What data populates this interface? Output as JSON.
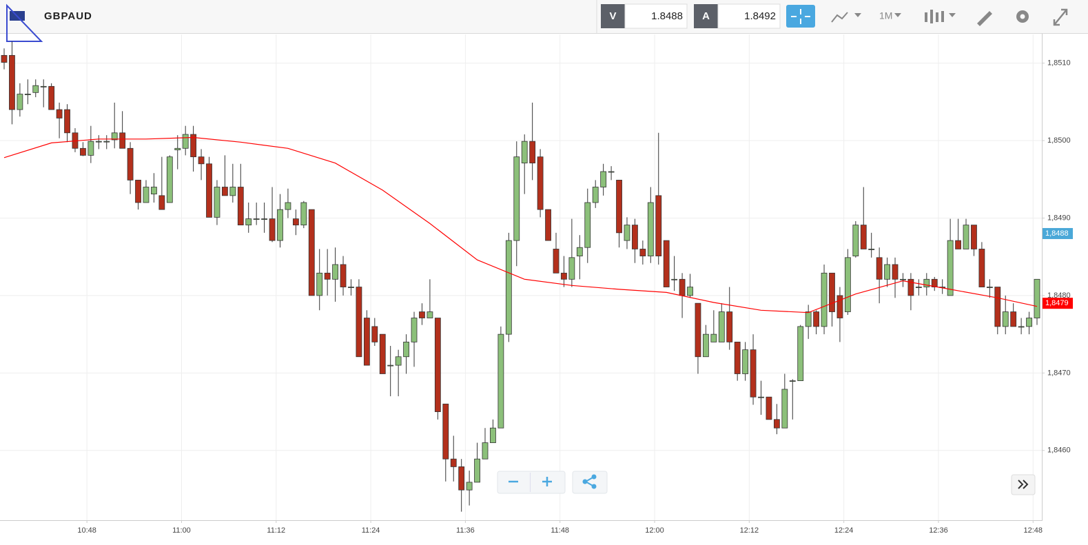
{
  "header": {
    "symbol": "GBPAUD",
    "bid_label": "V",
    "bid": "1.8488",
    "ask_label": "A",
    "ask": "1.8492",
    "timeframe": "1M"
  },
  "chart_data": {
    "type": "candlestick",
    "x": [
      "10:38",
      "10:39",
      "10:40",
      "10:41",
      "10:42",
      "10:43",
      "10:44",
      "10:45",
      "10:46",
      "10:47",
      "10:48",
      "10:49",
      "10:50",
      "10:51",
      "10:52",
      "10:53",
      "10:54",
      "10:55",
      "10:56",
      "10:57",
      "10:58",
      "10:59",
      "11:00",
      "11:01",
      "11:02",
      "11:03",
      "11:04",
      "11:05",
      "11:06",
      "11:07",
      "11:08",
      "11:09",
      "11:10",
      "11:11",
      "11:12",
      "11:13",
      "11:14",
      "11:15",
      "11:16",
      "11:17",
      "11:18",
      "11:19",
      "11:20",
      "11:21",
      "11:22",
      "11:23",
      "11:24",
      "11:25",
      "11:26",
      "11:27",
      "11:28",
      "11:29",
      "11:30",
      "11:31",
      "11:32",
      "11:33",
      "11:34",
      "11:35",
      "11:36",
      "11:37",
      "11:38",
      "11:39",
      "11:40",
      "11:41",
      "11:42",
      "11:43",
      "11:44",
      "11:45",
      "11:46",
      "11:47",
      "11:48",
      "11:49",
      "11:50",
      "11:51",
      "11:52",
      "11:53",
      "11:54",
      "11:55",
      "11:56",
      "11:57",
      "11:58",
      "11:59",
      "12:00",
      "12:01",
      "12:02",
      "12:03",
      "12:04",
      "12:05",
      "12:06",
      "12:07",
      "12:08",
      "12:09",
      "12:10",
      "12:11",
      "12:12",
      "12:13",
      "12:14",
      "12:15",
      "12:16",
      "12:17",
      "12:18",
      "12:19",
      "12:20",
      "12:21",
      "12:22",
      "12:23",
      "12:24",
      "12:25",
      "12:26",
      "12:27",
      "12:28",
      "12:29",
      "12:30",
      "12:31",
      "12:32",
      "12:33",
      "12:34",
      "12:35",
      "12:36",
      "12:37",
      "12:38",
      "12:39",
      "12:40",
      "12:41",
      "12:42",
      "12:43",
      "12:44",
      "12:45",
      "12:46",
      "12:47",
      "12:48",
      "12:49"
    ],
    "open": [
      1.8511,
      1.8511,
      1.8504,
      1.8506,
      1.85062,
      1.8507,
      1.8507,
      1.8504,
      1.8504,
      1.8501,
      1.8499,
      1.84981,
      1.84999,
      1.84999,
      1.85001,
      1.8501,
      1.8499,
      1.84949,
      1.8492,
      1.84931,
      1.84929,
      1.8492,
      1.84988,
      1.8499,
      1.85008,
      1.84979,
      1.8497,
      1.84901,
      1.8494,
      1.84929,
      1.8494,
      1.84891,
      1.84899,
      1.84899,
      1.84899,
      1.84871,
      1.84911,
      1.84899,
      1.84891,
      1.84911,
      1.848,
      1.84829,
      1.84821,
      1.8484,
      1.84811,
      1.84811,
      1.84771,
      1.8476,
      1.8475,
      1.8471,
      1.8471,
      1.84721,
      1.8474,
      1.84779,
      1.84771,
      1.84771,
      1.8466,
      1.84589,
      1.84579,
      1.84549,
      1.84559,
      1.84589,
      1.8461,
      1.84629,
      1.8475,
      1.84871,
      1.84971,
      1.84999,
      1.84979,
      1.84911,
      1.8486,
      1.84829,
      1.84821,
      1.84851,
      1.84862,
      1.8492,
      1.8494,
      1.8496,
      1.84949,
      1.84871,
      1.84891,
      1.8486,
      1.84851,
      1.84929,
      1.84871,
      1.84821,
      1.84821,
      1.848,
      1.8479,
      1.84721,
      1.8474,
      1.8474,
      1.84779,
      1.8474,
      1.84699,
      1.8473,
      1.84669,
      1.84669,
      1.8464,
      1.84629,
      1.8469,
      1.8469,
      1.8476,
      1.84779,
      1.8476,
      1.84829,
      1.848,
      1.84779,
      1.84851,
      1.84891,
      1.8486,
      1.84849,
      1.84821,
      1.8484,
      1.84821,
      1.84821,
      1.84811,
      1.84811,
      1.84821,
      1.84811,
      1.848,
      1.84871,
      1.8486,
      1.84891,
      1.8486,
      1.84811,
      1.84811,
      1.8476,
      1.84779,
      1.8476,
      1.8476,
      1.84771
    ],
    "high": [
      1.85119,
      1.85128,
      1.85074,
      1.85079,
      1.85079,
      1.85079,
      1.85074,
      1.85049,
      1.85047,
      1.85016,
      1.84998,
      1.85019,
      1.85007,
      1.85007,
      1.85049,
      1.85038,
      1.84998,
      1.84949,
      1.84949,
      1.84958,
      1.84979,
      1.84981,
      1.85007,
      1.85019,
      1.85019,
      1.84989,
      1.84979,
      1.84949,
      1.84981,
      1.8497,
      1.8497,
      1.8492,
      1.8492,
      1.8492,
      1.8494,
      1.84931,
      1.84938,
      1.84911,
      1.84922,
      1.84911,
      1.8486,
      1.8486,
      1.84862,
      1.84851,
      1.84821,
      1.84821,
      1.84781,
      1.84771,
      1.8475,
      1.84735,
      1.8473,
      1.8475,
      1.84779,
      1.8479,
      1.84821,
      1.84771,
      1.8466,
      1.84619,
      1.84589,
      1.84574,
      1.8461,
      1.84629,
      1.8464,
      1.8476,
      1.84881,
      1.84999,
      1.85008,
      1.85049,
      1.84989,
      1.84911,
      1.84881,
      1.84851,
      1.84899,
      1.84878,
      1.84938,
      1.84949,
      1.8497,
      1.84967,
      1.84949,
      1.84901,
      1.84899,
      1.84871,
      1.8494,
      1.8501,
      1.84871,
      1.84851,
      1.84829,
      1.84828,
      1.8479,
      1.84762,
      1.84781,
      1.8479,
      1.84811,
      1.8474,
      1.8474,
      1.8475,
      1.8469,
      1.84669,
      1.8466,
      1.84699,
      1.84692,
      1.84762,
      1.84788,
      1.84781,
      1.8484,
      1.84829,
      1.84811,
      1.8486,
      1.84896,
      1.8494,
      1.84881,
      1.84862,
      1.84849,
      1.84849,
      1.84829,
      1.84829,
      1.84821,
      1.84829,
      1.84824,
      1.84821,
      1.84899,
      1.84899,
      1.84899,
      1.84891,
      1.84869,
      1.84821,
      1.84811,
      1.848,
      1.8479,
      1.84771,
      1.84779,
      1.84821
    ],
    "low": [
      1.85092,
      1.85021,
      1.85031,
      1.85047,
      1.85056,
      1.85043,
      1.8504,
      1.85003,
      1.84998,
      1.84985,
      1.8498,
      1.84971,
      1.84989,
      1.84989,
      1.8499,
      1.8499,
      1.84931,
      1.84911,
      1.8492,
      1.8492,
      1.84911,
      1.8492,
      1.84963,
      1.84981,
      1.8496,
      1.84949,
      1.84901,
      1.84891,
      1.84929,
      1.8492,
      1.84891,
      1.84881,
      1.84891,
      1.84881,
      1.84869,
      1.84862,
      1.849,
      1.84878,
      1.84887,
      1.848,
      1.84781,
      1.848,
      1.84792,
      1.848,
      1.848,
      1.84721,
      1.8471,
      1.84735,
      1.84699,
      1.8467,
      1.8467,
      1.84699,
      1.84708,
      1.84762,
      1.84771,
      1.8464,
      1.8456,
      1.8456,
      1.84521,
      1.84529,
      1.84559,
      1.84589,
      1.8461,
      1.84629,
      1.8474,
      1.84838,
      1.84931,
      1.84949,
      1.84901,
      1.84871,
      1.84829,
      1.84811,
      1.84811,
      1.84821,
      1.84842,
      1.84913,
      1.84929,
      1.84949,
      1.84862,
      1.8486,
      1.84842,
      1.8484,
      1.84842,
      1.8484,
      1.84811,
      1.84806,
      1.84771,
      1.84797,
      1.84699,
      1.84721,
      1.8474,
      1.8474,
      1.8473,
      1.8469,
      1.8469,
      1.84659,
      1.84646,
      1.8464,
      1.84621,
      1.84629,
      1.8464,
      1.8469,
      1.84744,
      1.8475,
      1.8475,
      1.8476,
      1.8474,
      1.84775,
      1.84849,
      1.8486,
      1.84849,
      1.8479,
      1.84811,
      1.84797,
      1.84811,
      1.84781,
      1.848,
      1.848,
      1.84806,
      1.84802,
      1.848,
      1.8486,
      1.8486,
      1.84851,
      1.84811,
      1.84797,
      1.8475,
      1.8475,
      1.8476,
      1.8475,
      1.8475,
      1.84762
    ],
    "close": [
      1.85101,
      1.8504,
      1.8506,
      1.8506,
      1.85071,
      1.8507,
      1.8504,
      1.85029,
      1.8501,
      1.8499,
      1.84981,
      1.84999,
      1.84999,
      1.84999,
      1.8501,
      1.8499,
      1.84949,
      1.8492,
      1.8494,
      1.8494,
      1.84911,
      1.84979,
      1.8499,
      1.85008,
      1.84979,
      1.8497,
      1.84901,
      1.8494,
      1.84929,
      1.8494,
      1.84891,
      1.84899,
      1.84899,
      1.84899,
      1.84871,
      1.84911,
      1.8492,
      1.84891,
      1.8492,
      1.848,
      1.84829,
      1.84821,
      1.8484,
      1.84811,
      1.84811,
      1.84721,
      1.8471,
      1.8474,
      1.84699,
      1.8471,
      1.84721,
      1.8474,
      1.84771,
      1.84771,
      1.84779,
      1.8465,
      1.84589,
      1.84579,
      1.84549,
      1.84559,
      1.84589,
      1.8461,
      1.84629,
      1.8475,
      1.84871,
      1.84979,
      1.84999,
      1.84971,
      1.84911,
      1.84871,
      1.84829,
      1.84821,
      1.84849,
      1.84862,
      1.8492,
      1.8494,
      1.8496,
      1.8496,
      1.84881,
      1.84891,
      1.8486,
      1.84851,
      1.8492,
      1.84851,
      1.84811,
      1.84821,
      1.848,
      1.84811,
      1.84721,
      1.8475,
      1.8475,
      1.84779,
      1.8474,
      1.84699,
      1.8473,
      1.84669,
      1.84669,
      1.8464,
      1.84629,
      1.84679,
      1.8469,
      1.8476,
      1.84779,
      1.8476,
      1.84829,
      1.84779,
      1.84771,
      1.84849,
      1.84891,
      1.8486,
      1.8486,
      1.84821,
      1.8484,
      1.84821,
      1.84821,
      1.848,
      1.84811,
      1.84821,
      1.84811,
      1.84811,
      1.84871,
      1.8486,
      1.84891,
      1.8486,
      1.84811,
      1.84811,
      1.8476,
      1.84779,
      1.8476,
      1.8476,
      1.84771,
      1.84821
    ],
    "up_color": "#8cc07a",
    "down_color": "#b3301c",
    "moving_average": {
      "color": "#ff0000",
      "x": [
        "10:38",
        "10:44",
        "10:50",
        "10:56",
        "11:02",
        "11:08",
        "11:14",
        "11:20",
        "11:26",
        "11:32",
        "11:38",
        "11:44",
        "11:50",
        "11:56",
        "12:02",
        "12:08",
        "12:14",
        "12:20",
        "12:26",
        "12:32",
        "12:38",
        "12:44",
        "12:49"
      ],
      "values": [
        1.84978,
        1.84997,
        1.85002,
        1.85002,
        1.85004,
        1.84998,
        1.8499,
        1.84971,
        1.84936,
        1.84893,
        1.84846,
        1.84821,
        1.84813,
        1.84808,
        1.84804,
        1.84791,
        1.84781,
        1.84778,
        1.84802,
        1.84819,
        1.84808,
        1.84797,
        1.84786
      ]
    },
    "price_labels": [
      {
        "value": 1.8488,
        "label": "1,8488",
        "color": "#4aa8d8"
      },
      {
        "value": 1.8479,
        "label": "1,8479",
        "color": "#ff0000"
      }
    ],
    "ylim": [
      1.8451,
      1.85137
    ],
    "yticks": [
      {
        "value": 1.846,
        "label": "1,8460"
      },
      {
        "value": 1.847,
        "label": "1,8470"
      },
      {
        "value": 1.848,
        "label": "1,8480"
      },
      {
        "value": 1.849,
        "label": "1,8490"
      },
      {
        "value": 1.85,
        "label": "1,8500"
      },
      {
        "value": 1.851,
        "label": "1,8510"
      }
    ],
    "xticks": [
      "10:48",
      "11:00",
      "11:12",
      "11:24",
      "11:36",
      "11:48",
      "12:00",
      "12:12",
      "12:24",
      "12:36",
      "12:48"
    ],
    "grid": true
  }
}
